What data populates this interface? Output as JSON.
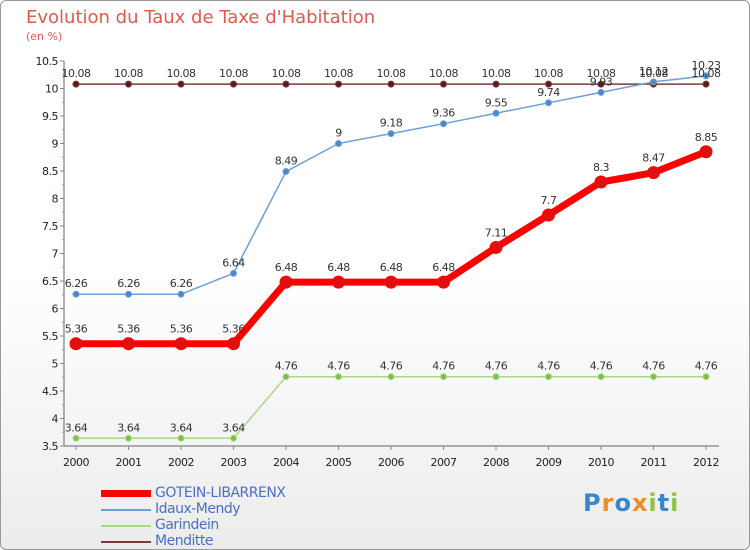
{
  "title": "Evolution du Taux de Taxe d'Habitation",
  "subtitle": "(en %)",
  "logo": {
    "letters": [
      "P",
      "r",
      "o",
      "x",
      "i",
      "t",
      "i"
    ],
    "colors": [
      "#3a86c8",
      "#f28c28",
      "#3a86c8",
      "#f28c28",
      "#8cc63f",
      "#3a86c8",
      "#8cc63f"
    ]
  },
  "chart_data": {
    "type": "line",
    "title": "Evolution du Taux de Taxe d'Habitation",
    "ylabel": "(en %)",
    "xlabel": "",
    "ylim": [
      3.5,
      10.5
    ],
    "yticks": [
      "3.5",
      "4",
      "4.5",
      "5",
      "5.5",
      "6",
      "6.5",
      "7",
      "7.5",
      "8",
      "8.5",
      "9",
      "9.5",
      "10",
      "10.5"
    ],
    "categories": [
      "2000",
      "2001",
      "2002",
      "2003",
      "2004",
      "2005",
      "2006",
      "2007",
      "2008",
      "2009",
      "2010",
      "2011",
      "2012"
    ],
    "series": [
      {
        "name": "GOTEIN-LIBARRENX",
        "color": "#ff0000",
        "marker": "#e01010",
        "width": 7,
        "r": 6,
        "values": [
          5.36,
          5.36,
          5.36,
          5.36,
          6.48,
          6.48,
          6.48,
          6.48,
          7.11,
          7.7,
          8.3,
          8.47,
          8.85
        ],
        "labels": [
          "5.36",
          "5.36",
          "5.36",
          "5.36",
          "6.48",
          "6.48",
          "6.48",
          "6.48",
          "7.11",
          "7.7",
          "8.3",
          "8.47",
          "8.85"
        ]
      },
      {
        "name": "Idaux-Mendy",
        "color": "#6f9fd8",
        "marker": "#4f86c6",
        "width": 1.5,
        "r": 3,
        "values": [
          6.26,
          6.26,
          6.26,
          6.64,
          8.49,
          9,
          9.18,
          9.36,
          9.55,
          9.74,
          9.93,
          10.12,
          10.23
        ],
        "labels": [
          "6.26",
          "6.26",
          "6.26",
          "6.64",
          "8.49",
          "9",
          "9.18",
          "9.36",
          "9.55",
          "9.74",
          "9.93",
          "10.12",
          "10.23"
        ]
      },
      {
        "name": "Garindein",
        "color": "#a8d88a",
        "marker": "#7cc04a",
        "width": 1.5,
        "r": 3,
        "values": [
          3.64,
          3.64,
          3.64,
          3.64,
          4.76,
          4.76,
          4.76,
          4.76,
          4.76,
          4.76,
          4.76,
          4.76,
          4.76
        ],
        "labels": [
          "3.64",
          "3.64",
          "3.64",
          "3.64",
          "4.76",
          "4.76",
          "4.76",
          "4.76",
          "4.76",
          "4.76",
          "4.76",
          "4.76",
          "4.76"
        ]
      },
      {
        "name": "Menditte",
        "color": "#7a3b3b",
        "marker": "#5a1a1a",
        "width": 1.5,
        "r": 3,
        "values": [
          10.08,
          10.08,
          10.08,
          10.08,
          10.08,
          10.08,
          10.08,
          10.08,
          10.08,
          10.08,
          10.08,
          10.08,
          10.08
        ],
        "labels": [
          "10.08",
          "10.08",
          "10.08",
          "10.08",
          "10.08",
          "10.08",
          "10.08",
          "10.08",
          "10.08",
          "10.08",
          "10.08",
          "10.08",
          "10.08"
        ]
      }
    ],
    "legend": "bottom-left",
    "grid": false
  }
}
